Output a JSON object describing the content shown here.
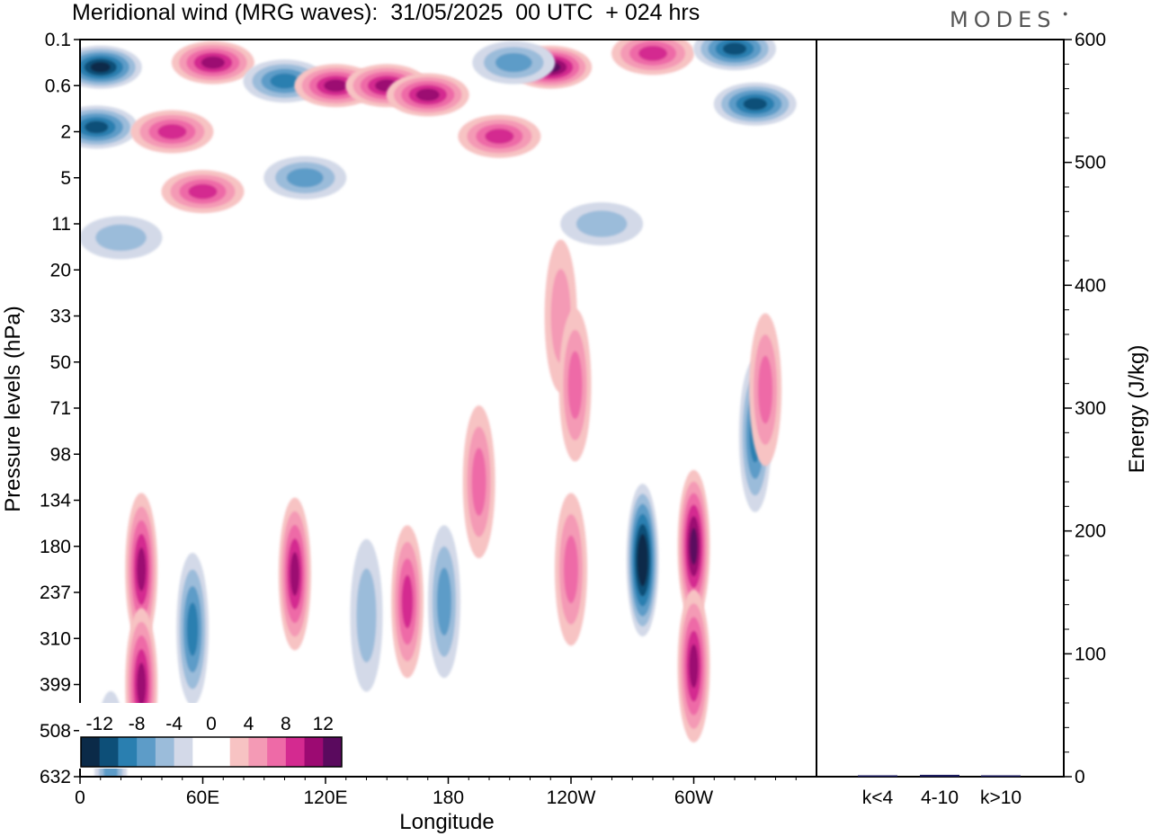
{
  "title": "Meridional wind (MRG waves):  31/05/2025  00 UTC  + 024 hrs",
  "logo": "MODES",
  "chart_data": [
    {
      "type": "heatmap",
      "title": "Meridional wind (MRG waves):  31/05/2025  00 UTC  + 024 hrs",
      "xlabel": "Longitude",
      "ylabel": "Pressure levels (hPa)",
      "x_ticks": [
        "0",
        "60E",
        "120E",
        "180",
        "120W",
        "60W"
      ],
      "y_ticks": [
        "0.1",
        "0.6",
        "2",
        "5",
        "11",
        "20",
        "33",
        "50",
        "71",
        "98",
        "134",
        "180",
        "237",
        "310",
        "399",
        "508",
        "632"
      ],
      "colorbar": {
        "labels": [
          "-12",
          "-8",
          "-4",
          "0",
          "4",
          "8",
          "12"
        ],
        "colors": [
          "#0b2a48",
          "#0d4f78",
          "#2a7fb0",
          "#5d9cc8",
          "#9bbcda",
          "#d3d9e8",
          "#ffffff",
          "#ffffff",
          "#f7c3c3",
          "#f49ab5",
          "#ee6aa7",
          "#d42a90",
          "#9c0a72",
          "#5a0a5e"
        ]
      },
      "anomalies": [
        {
          "lon": 10,
          "p_index": 0.6,
          "v": -12
        },
        {
          "lon": 65,
          "p_index": 0.5,
          "v": 10
        },
        {
          "lon": 100,
          "p_index": 0.9,
          "v": -8
        },
        {
          "lon": 125,
          "p_index": 1.0,
          "v": 10
        },
        {
          "lon": 150,
          "p_index": 1.0,
          "v": 9
        },
        {
          "lon": 170,
          "p_index": 1.2,
          "v": 9
        },
        {
          "lon": 230,
          "p_index": 0.6,
          "v": 11
        },
        {
          "lon": 212,
          "p_index": 0.5,
          "v": -6
        },
        {
          "lon": 280,
          "p_index": 0.3,
          "v": 8
        },
        {
          "lon": 320,
          "p_index": 0.2,
          "v": -10
        },
        {
          "lon": 330,
          "p_index": 1.4,
          "v": -10
        },
        {
          "lon": 8,
          "p_index": 1.9,
          "v": -9
        },
        {
          "lon": 45,
          "p_index": 2.0,
          "v": 7
        },
        {
          "lon": 60,
          "p_index": 3.3,
          "v": 7
        },
        {
          "lon": 205,
          "p_index": 2.1,
          "v": 8
        },
        {
          "lon": 110,
          "p_index": 3.0,
          "v": -5
        },
        {
          "lon": 20,
          "p_index": 4.3,
          "v": -4
        },
        {
          "lon": 255,
          "p_index": 4.0,
          "v": -4
        },
        {
          "lon": 235,
          "p_index": 6.0,
          "v": 4
        },
        {
          "lon": 242,
          "p_index": 7.5,
          "v": 5
        },
        {
          "lon": 330,
          "p_index": 8.6,
          "v": -7
        },
        {
          "lon": 335,
          "p_index": 7.6,
          "v": 5
        },
        {
          "lon": 30,
          "p_index": 11.5,
          "v": 9
        },
        {
          "lon": 30,
          "p_index": 14.0,
          "v": 9
        },
        {
          "lon": 55,
          "p_index": 12.8,
          "v": -7
        },
        {
          "lon": 105,
          "p_index": 11.6,
          "v": 9
        },
        {
          "lon": 160,
          "p_index": 12.2,
          "v": 7
        },
        {
          "lon": 178,
          "p_index": 12.2,
          "v": -6
        },
        {
          "lon": 195,
          "p_index": 9.6,
          "v": 6
        },
        {
          "lon": 240,
          "p_index": 11.5,
          "v": 6
        },
        {
          "lon": 275,
          "p_index": 11.3,
          "v": -13
        },
        {
          "lon": 300,
          "p_index": 11.0,
          "v": 12
        },
        {
          "lon": 300,
          "p_index": 13.6,
          "v": 9
        },
        {
          "lon": 15,
          "p_index": 15.8,
          "v": -6
        },
        {
          "lon": 140,
          "p_index": 12.5,
          "v": -4
        }
      ]
    },
    {
      "type": "bar",
      "categories": [
        "k<4",
        "4-10",
        "k>10"
      ],
      "values": [
        0.3,
        1.5,
        0.2
      ],
      "ylabel": "Energy (J/kg)",
      "y_ticks": [
        "0",
        "100",
        "200",
        "300",
        "400",
        "500",
        "600"
      ],
      "ylim": [
        0,
        600
      ],
      "bar_color": "#1a1a5e"
    }
  ]
}
